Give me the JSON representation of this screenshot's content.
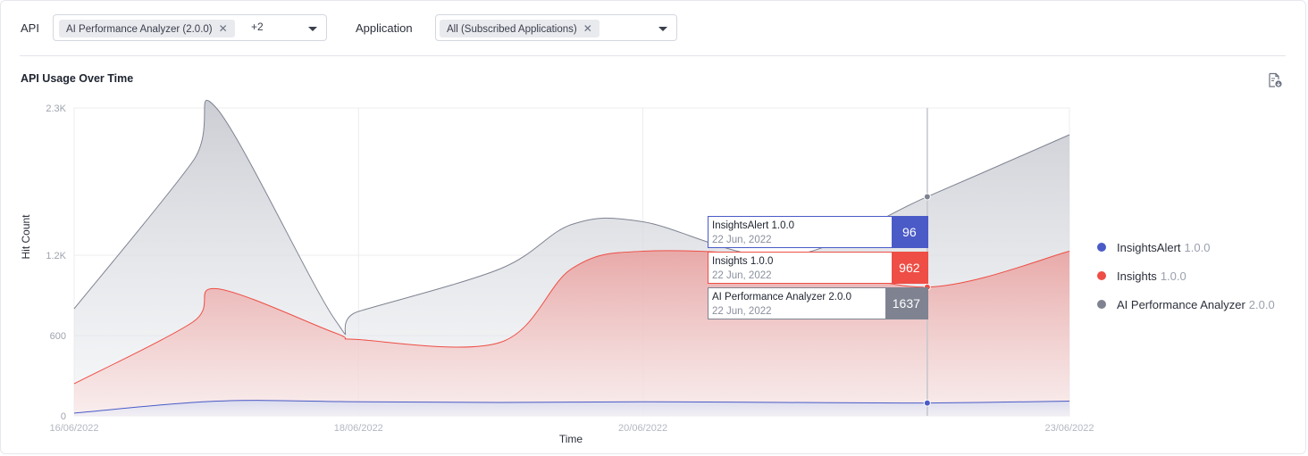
{
  "filters": {
    "api_label": "API",
    "api_chip": "AI Performance Analyzer (2.0.0)",
    "api_more": "+2",
    "application_label": "Application",
    "application_chip": "All (Subscribed Applications)",
    "chip_remove": "✕"
  },
  "chart_title": "API Usage Over Time",
  "icons": {
    "export": "export-file-icon",
    "chip_remove": "close-icon",
    "dropdown": "caret-down-icon"
  },
  "colors": {
    "insights_alert": "#4a5bc7",
    "insights": "#ee4e45",
    "ai_perf": "#7f8391"
  },
  "tooltips": [
    {
      "name": "InsightsAlert 1.0.0",
      "date": "22 Jun, 2022",
      "value": "96",
      "color": "#4a5bc7"
    },
    {
      "name": "Insights 1.0.0",
      "date": "22 Jun, 2022",
      "value": "962",
      "color": "#ee4e45"
    },
    {
      "name": "AI Performance Analyzer 2.0.0",
      "date": "22 Jun, 2022",
      "value": "1637",
      "color": "#7f8391"
    }
  ],
  "legend": [
    {
      "name": "InsightsAlert",
      "version": "1.0.0",
      "color": "#4a5bc7"
    },
    {
      "name": "Insights",
      "version": "1.0.0",
      "color": "#ee4e45"
    },
    {
      "name": "AI Performance Analyzer",
      "version": "2.0.0",
      "color": "#7f8391"
    }
  ],
  "chart_data": {
    "type": "area",
    "xlabel": "Time",
    "ylabel": "Hit Count",
    "ylim": [
      0,
      2300
    ],
    "y_ticks": [
      0,
      600,
      1200,
      2300
    ],
    "y_tick_labels": [
      "0",
      "600",
      "1.2K",
      "2.3K"
    ],
    "x_tick_dates": [
      "2022-06-16",
      "2022-06-18",
      "2022-06-20",
      "2022-06-23"
    ],
    "x_tick_labels": [
      "16/06/2022",
      "18/06/2022",
      "20/06/2022",
      "23/06/2022"
    ],
    "grid": true,
    "legend_position": "right",
    "hover_date": "2022-06-22",
    "series": [
      {
        "name": "AI Performance Analyzer 2.0.0",
        "color": "#7f8391",
        "x": [
          "2022-06-16",
          "2022-06-16T20:00",
          "2022-06-17",
          "2022-06-17T20:00",
          "2022-06-18",
          "2022-06-19",
          "2022-06-19T12:00",
          "2022-06-20",
          "2022-06-21",
          "2022-06-22",
          "2022-06-23"
        ],
        "values": [
          800,
          1900,
          2300,
          720,
          780,
          1100,
          1430,
          1450,
          1190,
          1637,
          2100
        ]
      },
      {
        "name": "Insights 1.0.0",
        "color": "#ee4e45",
        "x": [
          "2022-06-16",
          "2022-06-16T20:00",
          "2022-06-17",
          "2022-06-17T20:00",
          "2022-06-18",
          "2022-06-19",
          "2022-06-19T12:00",
          "2022-06-20",
          "2022-06-21",
          "2022-06-22",
          "2022-06-23"
        ],
        "values": [
          240,
          700,
          950,
          620,
          570,
          550,
          1100,
          1230,
          1180,
          962,
          1230
        ]
      },
      {
        "name": "InsightsAlert 1.0.0",
        "color": "#4a5bc7",
        "x": [
          "2022-06-16",
          "2022-06-17",
          "2022-06-18",
          "2022-06-19",
          "2022-06-20",
          "2022-06-21",
          "2022-06-22",
          "2022-06-23"
        ],
        "values": [
          20,
          110,
          105,
          100,
          105,
          100,
          96,
          110
        ]
      }
    ]
  }
}
